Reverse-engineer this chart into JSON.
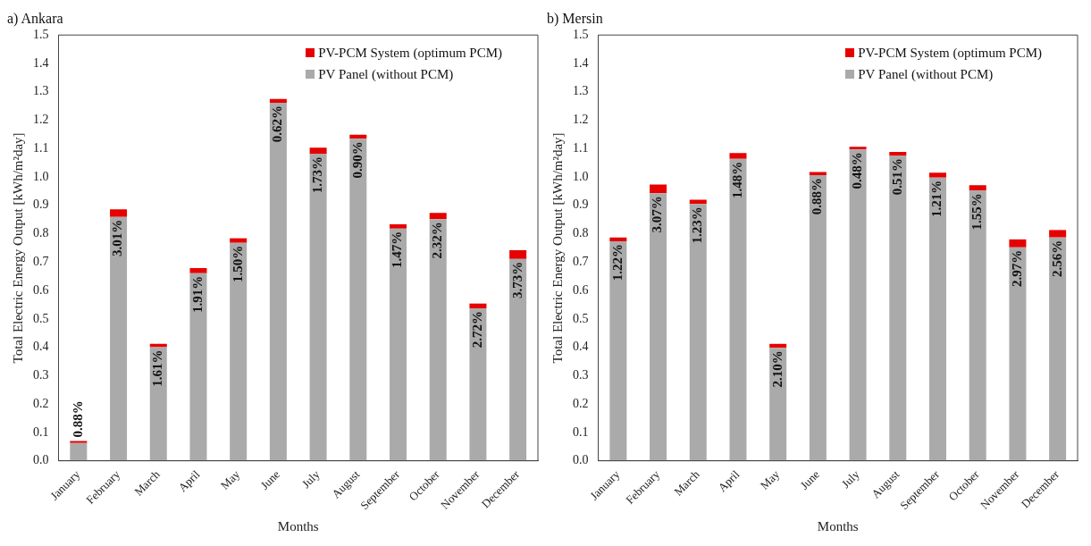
{
  "chart_data": [
    {
      "type": "bar",
      "title": "a) Ankara",
      "xlabel": "Months",
      "ylabel": "Total Electric Energy Output [kWh/m²day]",
      "categories": [
        "January",
        "February",
        "March",
        "April",
        "May",
        "June",
        "July",
        "August",
        "September",
        "October",
        "November",
        "December"
      ],
      "stacked": true,
      "legend": "top right",
      "grid": false,
      "ylim": [
        0,
        1.5
      ],
      "yticks": [
        {
          "value": 0,
          "label": "0.0"
        },
        {
          "value": 0.1,
          "label": "0.1"
        },
        {
          "value": 0.2,
          "label": "0.2"
        },
        {
          "value": 0.3,
          "label": "0.3"
        },
        {
          "value": 0.4,
          "label": "0.4"
        },
        {
          "value": 0.5,
          "label": "0.5"
        },
        {
          "value": 0.6,
          "label": "0.6"
        },
        {
          "value": 0.7,
          "label": "0.7"
        },
        {
          "value": 0.8,
          "label": "0.8"
        },
        {
          "value": 0.9,
          "label": "0.9"
        },
        {
          "value": 1,
          "label": "1.0"
        },
        {
          "value": 1.1,
          "label": "1.1"
        },
        {
          "value": 1.2,
          "label": "1.2"
        },
        {
          "value": 1.3,
          "label": "1.3"
        },
        {
          "value": 1.4,
          "label": "1.4"
        },
        {
          "value": 1.5,
          "label": "1.5"
        }
      ],
      "series": [
        {
          "name": "PV Panel (without PCM)",
          "color": "#aaaaaa",
          "values": [
            0.063,
            0.859,
            0.4,
            0.661,
            0.768,
            1.261,
            1.082,
            1.135,
            0.818,
            0.851,
            0.537,
            0.711
          ]
        },
        {
          "name": "PV-PCM System (optimum PCM)",
          "color": "#e60000",
          "values": [
            0.007,
            0.027,
            0.012,
            0.018,
            0.016,
            0.014,
            0.021,
            0.014,
            0.015,
            0.022,
            0.017,
            0.031
          ]
        }
      ],
      "annotations": [
        {
          "text": "0.88%",
          "x": "January",
          "y": 0.063
        },
        {
          "text": "3.01%",
          "x": "February",
          "y": 0.859
        },
        {
          "text": "1.61%",
          "x": "March",
          "y": 0.4
        },
        {
          "text": "1.91%",
          "x": "April",
          "y": 0.661
        },
        {
          "text": "1.50%",
          "x": "May",
          "y": 0.768
        },
        {
          "text": "0.62%",
          "x": "June",
          "y": 1.261
        },
        {
          "text": "1.73%",
          "x": "July",
          "y": 1.082
        },
        {
          "text": "0.90%",
          "x": "August",
          "y": 1.135
        },
        {
          "text": "1.47%",
          "x": "September",
          "y": 0.818
        },
        {
          "text": "2.32%",
          "x": "October",
          "y": 0.851
        },
        {
          "text": "2.72%",
          "x": "November",
          "y": 0.537
        },
        {
          "text": "3.73%",
          "x": "December",
          "y": 0.711
        }
      ]
    },
    {
      "type": "bar",
      "title": "b) Mersin",
      "xlabel": "Months",
      "ylabel": "Total Electric Energy Output [kWh/m²day]",
      "categories": [
        "January",
        "February",
        "March",
        "April",
        "May",
        "June",
        "July",
        "August",
        "September",
        "October",
        "November",
        "December"
      ],
      "stacked": true,
      "legend": "top right",
      "grid": false,
      "ylim": [
        0,
        1.5
      ],
      "yticks": [
        {
          "value": 0,
          "label": "0.0"
        },
        {
          "value": 0.1,
          "label": "0.1"
        },
        {
          "value": 0.2,
          "label": "0.2"
        },
        {
          "value": 0.3,
          "label": "0.3"
        },
        {
          "value": 0.4,
          "label": "0.4"
        },
        {
          "value": 0.5,
          "label": "0.5"
        },
        {
          "value": 0.6,
          "label": "0.6"
        },
        {
          "value": 0.7,
          "label": "0.7"
        },
        {
          "value": 0.8,
          "label": "0.8"
        },
        {
          "value": 0.9,
          "label": "0.9"
        },
        {
          "value": 1,
          "label": "1.0"
        },
        {
          "value": 1.1,
          "label": "1.1"
        },
        {
          "value": 1.2,
          "label": "1.2"
        },
        {
          "value": 1.3,
          "label": "1.3"
        },
        {
          "value": 1.4,
          "label": "1.4"
        },
        {
          "value": 1.5,
          "label": "1.5"
        }
      ],
      "series": [
        {
          "name": "PV Panel (without PCM)",
          "color": "#aaaaaa",
          "values": [
            0.773,
            0.943,
            0.905,
            1.064,
            0.398,
            1.006,
            1.097,
            1.076,
            0.998,
            0.952,
            0.752,
            0.787
          ]
        },
        {
          "name": "PV-PCM System (optimum PCM)",
          "color": "#e60000",
          "values": [
            0.014,
            0.03,
            0.015,
            0.02,
            0.014,
            0.011,
            0.009,
            0.012,
            0.017,
            0.019,
            0.028,
            0.026
          ]
        }
      ],
      "annotations": [
        {
          "text": "1.22%",
          "x": "January",
          "y": 0.773
        },
        {
          "text": "3.07%",
          "x": "February",
          "y": 0.943
        },
        {
          "text": "1.23%",
          "x": "March",
          "y": 0.905
        },
        {
          "text": "1.48%",
          "x": "April",
          "y": 1.064
        },
        {
          "text": "2.10%",
          "x": "May",
          "y": 0.398
        },
        {
          "text": "0.88%",
          "x": "June",
          "y": 1.006
        },
        {
          "text": "0.48%",
          "x": "July",
          "y": 1.097
        },
        {
          "text": "0.51%",
          "x": "August",
          "y": 1.076
        },
        {
          "text": "1.21%",
          "x": "September",
          "y": 0.998
        },
        {
          "text": "1.55%",
          "x": "October",
          "y": 0.952
        },
        {
          "text": "2.97%",
          "x": "November",
          "y": 0.752
        },
        {
          "text": "2.56%",
          "x": "December",
          "y": 0.787
        }
      ]
    }
  ]
}
